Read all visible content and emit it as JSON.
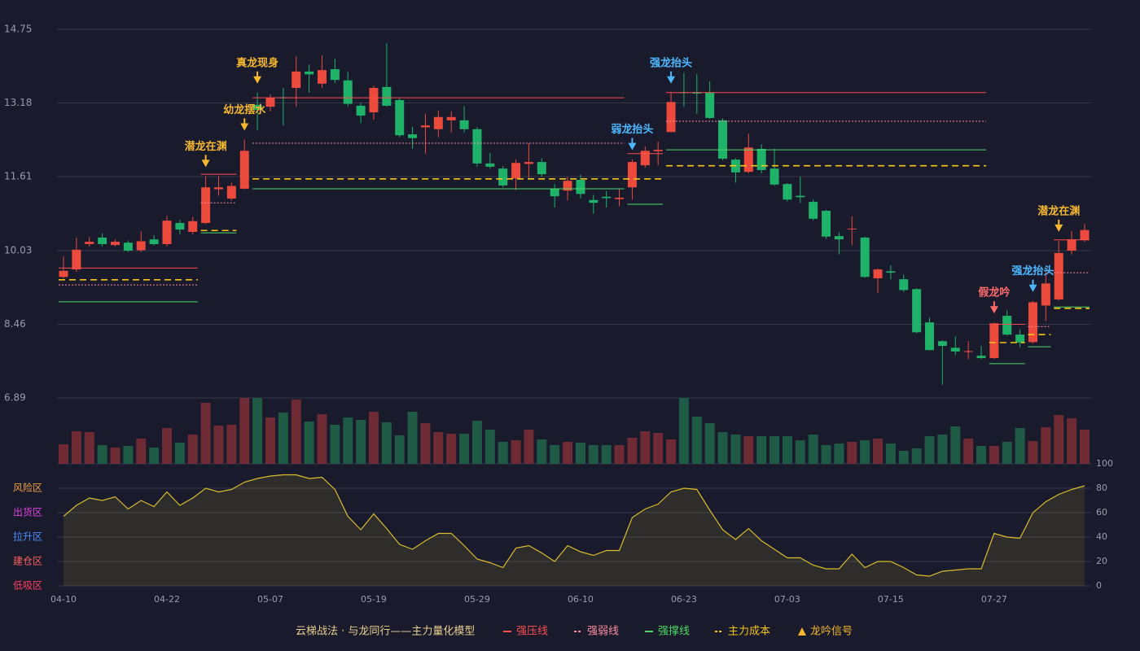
{
  "chart_data": {
    "type": "candlestick",
    "categories": [
      "04-10",
      null,
      null,
      null,
      null,
      null,
      null,
      null,
      "04-22",
      null,
      null,
      null,
      null,
      null,
      null,
      null,
      "05-07",
      null,
      null,
      null,
      null,
      null,
      null,
      null,
      "05-19",
      null,
      null,
      null,
      null,
      null,
      null,
      null,
      "05-29",
      null,
      null,
      null,
      null,
      null,
      null,
      null,
      "06-10",
      null,
      null,
      null,
      null,
      null,
      null,
      null,
      "06-23",
      null,
      null,
      null,
      null,
      null,
      null,
      null,
      "07-03",
      null,
      null,
      null,
      null,
      null,
      null,
      null,
      "07-15",
      null,
      null,
      null,
      null,
      null,
      null,
      null,
      "07-27",
      null,
      null,
      null,
      null,
      null,
      null,
      null
    ],
    "open": [
      9.47,
      9.63,
      10.17,
      10.31,
      10.15,
      10.2,
      10.04,
      10.27,
      10.17,
      10.62,
      10.43,
      10.62,
      11.34,
      11.14,
      11.35,
      13.14,
      13.1,
      13.3,
      13.5,
      13.85,
      13.59,
      13.9,
      13.66,
      13.12,
      12.98,
      13.52,
      13.24,
      12.51,
      12.66,
      12.62,
      12.81,
      12.81,
      12.62,
      11.89,
      11.78,
      11.57,
      11.88,
      11.92,
      11.35,
      11.31,
      11.54,
      11.11,
      11.18,
      11.13,
      11.38,
      11.85,
      12.15,
      12.56,
      13.41,
      13.41,
      13.4,
      12.81,
      11.97,
      11.71,
      12.2,
      11.78,
      11.45,
      11.2,
      11.07,
      10.88,
      10.34,
      10.5,
      10.31,
      9.44,
      9.59,
      9.42,
      9.21,
      8.5,
      8.1,
      7.96,
      7.87,
      7.79,
      7.74,
      8.64,
      8.24,
      8.08,
      8.86,
      8.99,
      10.03,
      10.26
    ],
    "close": [
      9.6,
      10.05,
      10.22,
      10.17,
      10.22,
      10.03,
      10.23,
      10.17,
      10.67,
      10.48,
      10.66,
      11.38,
      11.38,
      11.41,
      12.16,
      13.03,
      13.29,
      13.28,
      13.85,
      13.79,
      13.88,
      13.67,
      13.16,
      12.91,
      13.5,
      13.12,
      12.49,
      12.43,
      12.7,
      12.88,
      12.88,
      12.62,
      11.89,
      11.82,
      11.42,
      11.9,
      11.92,
      11.66,
      11.19,
      11.52,
      11.24,
      11.05,
      11.15,
      11.16,
      11.92,
      12.16,
      12.18,
      13.2,
      13.39,
      13.38,
      12.86,
      11.99,
      11.7,
      12.23,
      11.75,
      11.44,
      11.12,
      11.17,
      10.71,
      10.33,
      10.27,
      10.5,
      9.47,
      9.63,
      9.56,
      9.19,
      8.29,
      7.91,
      8.0,
      7.88,
      7.89,
      7.74,
      8.48,
      8.24,
      8.07,
      8.93,
      9.33,
      9.98,
      10.27,
      10.47
    ],
    "high": [
      9.91,
      10.3,
      10.32,
      10.4,
      10.27,
      10.25,
      10.44,
      10.36,
      10.77,
      10.69,
      10.75,
      11.62,
      11.62,
      11.48,
      12.4,
      13.4,
      13.36,
      13.5,
      14.17,
      14.0,
      14.19,
      14.12,
      13.84,
      13.18,
      13.55,
      14.45,
      13.28,
      12.67,
      12.95,
      13.02,
      13.0,
      13.11,
      12.66,
      12.12,
      11.83,
      11.98,
      12.32,
      12.0,
      11.45,
      11.6,
      11.65,
      11.22,
      11.3,
      11.35,
      11.98,
      12.25,
      12.35,
      13.4,
      13.82,
      13.8,
      13.64,
      12.85,
      12.0,
      12.52,
      12.3,
      12.2,
      11.47,
      11.61,
      11.12,
      10.9,
      10.42,
      10.76,
      10.33,
      9.65,
      9.72,
      9.52,
      9.23,
      8.6,
      8.12,
      8.2,
      8.1,
      8.0,
      8.5,
      8.76,
      8.35,
      8.96,
      9.62,
      10.24,
      10.45,
      10.6
    ],
    "low": [
      9.44,
      9.58,
      10.12,
      10.12,
      10.12,
      10.0,
      10.0,
      10.14,
      10.12,
      10.38,
      10.38,
      10.6,
      11.2,
      11.1,
      11.34,
      12.6,
      13.0,
      12.7,
      13.1,
      13.4,
      13.5,
      13.6,
      13.1,
      12.75,
      12.82,
      13.1,
      12.45,
      12.2,
      12.1,
      12.45,
      12.55,
      12.55,
      11.82,
      11.78,
      11.38,
      11.32,
      11.58,
      11.6,
      10.95,
      11.1,
      11.15,
      10.82,
      10.95,
      10.98,
      11.12,
      11.8,
      11.85,
      12.55,
      13.1,
      12.95,
      12.84,
      11.96,
      11.48,
      11.68,
      11.68,
      11.42,
      11.08,
      11.05,
      10.68,
      10.28,
      9.95,
      10.15,
      9.45,
      9.13,
      9.42,
      9.15,
      8.27,
      7.9,
      7.17,
      7.8,
      7.72,
      7.72,
      7.72,
      8.22,
      7.97,
      8.05,
      8.53,
      8.97,
      9.95,
      10.22
    ],
    "up_color": "#ec4a3d",
    "down_color": "#1fb36a",
    "ylim": [
      6.89,
      14.75
    ],
    "yticks": [
      6.89,
      8.46,
      10.03,
      11.61,
      13.18,
      14.75
    ],
    "grid": true,
    "volume": [
      24,
      40,
      39,
      23,
      20,
      22,
      31,
      20,
      44,
      26,
      36,
      75,
      47,
      48,
      81,
      81,
      57,
      63,
      79,
      52,
      61,
      48,
      57,
      54,
      64,
      51,
      35,
      64,
      50,
      39,
      37,
      37,
      53,
      42,
      27,
      29,
      42,
      30,
      23,
      27,
      26,
      23,
      23,
      23,
      32,
      40,
      38,
      30,
      81,
      58,
      50,
      39,
      36,
      34,
      34,
      34,
      34,
      29,
      36,
      23,
      25,
      27,
      29,
      31,
      25,
      16,
      19,
      34,
      36,
      46,
      31,
      22,
      22,
      27,
      44,
      28,
      45,
      60,
      56,
      42
    ],
    "volume_up_color": "#6e2b33",
    "volume_down_color": "#1f5a44",
    "levels": [
      {
        "name": "强压线",
        "color": "#ff4d4d",
        "dash": "none",
        "segments": [
          {
            "from": 0,
            "to": 10,
            "value": 9.66
          },
          {
            "from": 11,
            "to": 13,
            "value": 11.66
          },
          {
            "from": 15,
            "to": 43,
            "value": 13.29
          },
          {
            "from": 44,
            "to": 46,
            "value": 12.1
          },
          {
            "from": 47,
            "to": 71,
            "value": 13.4
          },
          {
            "from": 72,
            "to": 74,
            "value": 8.46
          },
          {
            "from": 77,
            "to": 79,
            "value": 10.26
          }
        ]
      },
      {
        "name": "强弱线",
        "color": "#ff8fa0",
        "dash": "2 2",
        "segments": [
          {
            "from": 0,
            "to": 10,
            "value": 9.3
          },
          {
            "from": 11,
            "to": 13,
            "value": 11.05
          },
          {
            "from": 15,
            "to": 43,
            "value": 12.32
          },
          {
            "from": 47,
            "to": 71,
            "value": 12.79
          },
          {
            "from": 75,
            "to": 76,
            "value": 8.41
          },
          {
            "from": 77,
            "to": 79,
            "value": 9.56
          }
        ]
      },
      {
        "name": "强撑线",
        "color": "#4cd964",
        "dash": "none",
        "segments": [
          {
            "from": 0,
            "to": 10,
            "value": 8.94
          },
          {
            "from": 11,
            "to": 13,
            "value": 10.41
          },
          {
            "from": 15,
            "to": 43,
            "value": 11.35
          },
          {
            "from": 44,
            "to": 46,
            "value": 11.02
          },
          {
            "from": 47,
            "to": 71,
            "value": 12.18
          },
          {
            "from": 72,
            "to": 74,
            "value": 7.62
          },
          {
            "from": 75,
            "to": 76,
            "value": 7.98
          },
          {
            "from": 77,
            "to": 79,
            "value": 8.83
          }
        ]
      },
      {
        "name": "主力成本",
        "color": "#f5c518",
        "dash": "8 5",
        "segments": [
          {
            "from": 0,
            "to": 10,
            "value": 9.41
          },
          {
            "from": 11,
            "to": 13,
            "value": 10.46
          },
          {
            "from": 15,
            "to": 46,
            "value": 11.56
          },
          {
            "from": 47,
            "to": 71,
            "value": 11.84
          },
          {
            "from": 72,
            "to": 74,
            "value": 8.07
          },
          {
            "from": 75,
            "to": 76,
            "value": 8.24
          },
          {
            "from": 77,
            "to": 79,
            "value": 8.8
          }
        ]
      }
    ],
    "signals": [
      {
        "index": 11,
        "text": "潜龙在渊",
        "color": "#f5b82e"
      },
      {
        "index": 14,
        "text": "幼龙摆水",
        "color": "#f5b82e"
      },
      {
        "index": 15,
        "text": "真龙现身",
        "color": "#f5b82e"
      },
      {
        "index": 44,
        "text": "弱龙抬头",
        "color": "#4db8ff"
      },
      {
        "index": 47,
        "text": "强龙抬头",
        "color": "#4db8ff"
      },
      {
        "index": 72,
        "text": "假龙吟",
        "color": "#ff6b6b"
      },
      {
        "index": 75,
        "text": "强龙抬头",
        "color": "#4db8ff"
      },
      {
        "index": 77,
        "text": "潜龙在渊",
        "color": "#f5b82e"
      }
    ],
    "indicator": {
      "color": "#d9bc2c",
      "values": [
        57,
        66,
        72,
        70,
        73,
        63,
        70,
        65,
        77,
        66,
        72,
        80,
        77,
        79,
        85,
        88,
        90,
        91,
        91,
        88,
        89,
        79,
        57,
        46,
        59,
        47,
        34,
        30,
        37,
        43,
        43,
        33,
        22,
        19,
        15,
        31,
        33,
        27,
        20,
        33,
        28,
        25,
        29,
        29,
        56,
        63,
        67,
        77,
        80,
        79,
        62,
        46,
        38,
        47,
        37,
        30,
        23,
        23,
        17,
        14,
        14,
        26,
        15,
        20,
        20,
        15,
        9,
        8,
        12,
        13,
        14,
        14,
        43,
        40,
        39,
        60,
        69,
        75,
        79,
        82
      ],
      "ylim": [
        0,
        100
      ],
      "yticks": [
        0,
        20,
        40,
        60,
        80,
        100
      ],
      "zone_ticks": [
        {
          "value": 80,
          "label": "风险区"
        },
        {
          "value": 60,
          "label": "出货区"
        },
        {
          "value": 40,
          "label": "拉升区"
        },
        {
          "value": 20,
          "label": "建仓区"
        },
        {
          "value": 0,
          "label": "低吸区"
        }
      ],
      "zone_colors": [
        "#f0a040",
        "#e040e0",
        "#4a90ff",
        "#ff6060",
        "#ff4060"
      ]
    },
    "legend_title": "云梯战法 · 与龙同行——主力量化模型",
    "signal_legend": {
      "name": "龙吟信号",
      "color": "#f5b82e"
    }
  }
}
